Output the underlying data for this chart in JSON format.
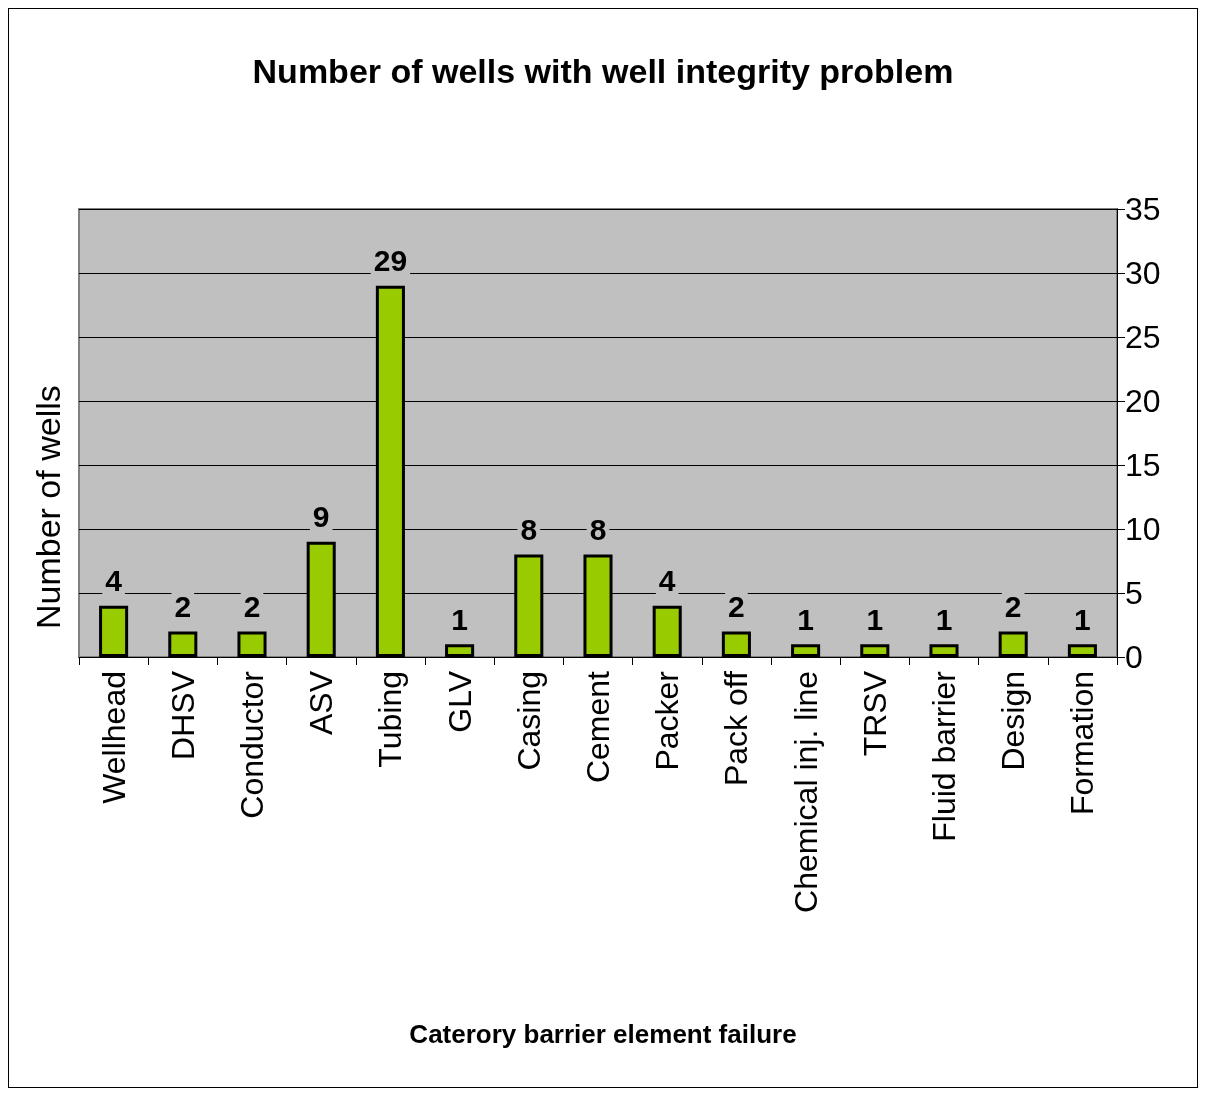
{
  "chart_data": {
    "type": "bar",
    "title": "Number of wells with well integrity problem",
    "xlabel": "Caterory barrier element failure",
    "ylabel": "Number of wells",
    "categories": [
      "Wellhead",
      "DHSV",
      "Conductor",
      "ASV",
      "Tubing",
      "GLV",
      "Casing",
      "Cement",
      "Packer",
      "Pack off",
      "Chemical inj. line",
      "TRSV",
      "Fluid barrier",
      "Design",
      "Formation"
    ],
    "values": [
      4,
      2,
      2,
      9,
      29,
      1,
      8,
      8,
      4,
      2,
      1,
      1,
      1,
      2,
      1
    ],
    "color": "#99cc00",
    "ylim": [
      0,
      35
    ],
    "yticks": [
      0,
      5,
      10,
      15,
      20,
      25,
      30,
      35
    ],
    "grid": "y",
    "data_labels": true
  }
}
